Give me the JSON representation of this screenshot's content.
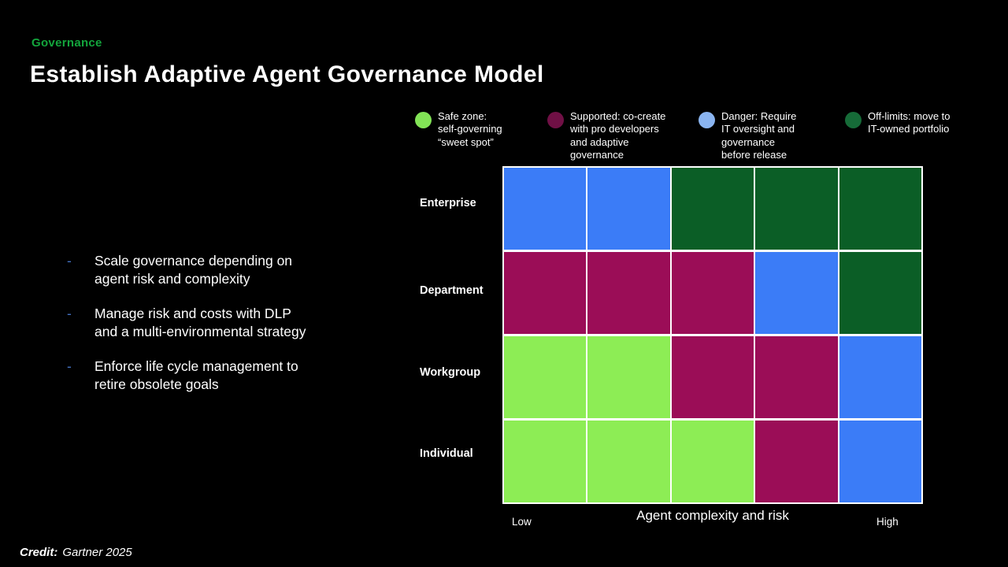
{
  "slide": {
    "eyebrow": "Governance",
    "title": "Establish Adaptive Agent Governance Model",
    "credit_label": "Credit:",
    "credit_text": "Gartner 2025",
    "background_color": "#000000",
    "eyebrow_color": "#13a53c",
    "bullet_marker": "-",
    "bullet_marker_color": "#4472c4"
  },
  "bullets": [
    "Scale governance depending on\nagent risk and complexity",
    "Manage risk and costs with DLP\nand a multi-environmental strategy",
    "Enforce life cycle management to\nretire obsolete goals"
  ],
  "legend": [
    {
      "name": "safe-zone",
      "label": "Safe zone:\nself-governing\n“sweet spot”",
      "dot_color": "#82e356"
    },
    {
      "name": "supported",
      "label": "Supported: co-create\nwith pro developers\nand adaptive\ngovernance",
      "dot_color": "#701045"
    },
    {
      "name": "danger",
      "label": "Danger: Require\nIT oversight and\ngovernance\nbefore release",
      "dot_color": "#8ab4f0"
    },
    {
      "name": "off-limits",
      "label": "Off-limits: move to\nIT-owned portfolio",
      "dot_color": "#166b38"
    }
  ],
  "chart_data": {
    "type": "heatmap",
    "rows": [
      "Enterprise",
      "Department",
      "Workgroup",
      "Individual"
    ],
    "column_count": 5,
    "x_axis": {
      "label": "Agent complexity and risk",
      "min_label": "Low",
      "max_label": "High"
    },
    "cells": [
      [
        "danger",
        "danger",
        "off-limits",
        "off-limits",
        "off-limits"
      ],
      [
        "supported",
        "supported",
        "supported",
        "danger",
        "off-limits"
      ],
      [
        "safe-zone",
        "safe-zone",
        "supported",
        "supported",
        "danger"
      ],
      [
        "safe-zone",
        "safe-zone",
        "safe-zone",
        "supported",
        "danger"
      ]
    ],
    "zone_colors": {
      "safe-zone": "#8ded55",
      "supported": "#9b0d57",
      "danger": "#3b7cf7",
      "off-limits": "#0b5e26"
    },
    "grid_border_color": "#ffffff",
    "legend_position": "top"
  }
}
